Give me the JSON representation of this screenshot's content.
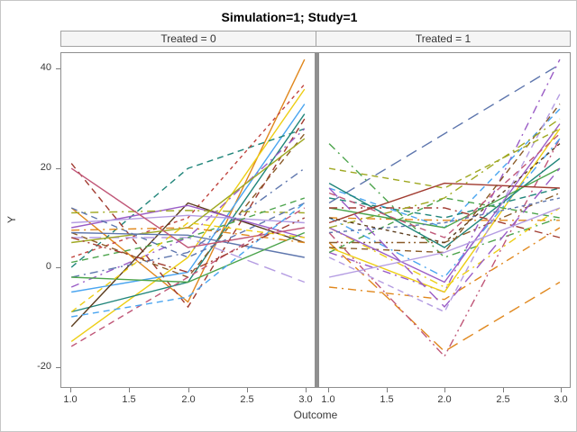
{
  "chart_data": {
    "type": "line",
    "title": "Simulation=1; Study=1",
    "xlabel": "Outcome",
    "ylabel": "Y",
    "x": [
      1,
      2,
      3
    ],
    "x_ticks": [
      "1.0",
      "1.5",
      "2.0",
      "2.5",
      "3.0"
    ],
    "y_ticks": [
      "40",
      "20",
      "0",
      "-20"
    ],
    "y_tick_values": [
      40,
      20,
      0,
      -20
    ],
    "ylim": [
      -24.2,
      43.3
    ],
    "x_inset_frac": 0.04,
    "grid": "off",
    "legend": "none",
    "dash_patterns": {
      "solid": "",
      "dash": "7 5",
      "shortdash": "4 4",
      "dashdot": "9 5 2 5",
      "longdash": "13 7",
      "dashdotdot": "9 4 2 4 2 4"
    },
    "panels": [
      {
        "label": "Treated = 0",
        "series": [
          {
            "color": "#E0871C",
            "dash": "solid",
            "y": [
              12,
              -7,
              42
            ]
          },
          {
            "color": "#EDCE15",
            "dash": "solid",
            "y": [
              -15,
              2,
              36
            ]
          },
          {
            "color": "#4AA5F0",
            "dash": "solid",
            "y": [
              -5,
              -1,
              33
            ]
          },
          {
            "color": "#20857A",
            "dash": "dash",
            "y": [
              0,
              20,
              28
            ]
          },
          {
            "color": "#20857A",
            "dash": "solid",
            "y": [
              -9,
              -3,
              31
            ]
          },
          {
            "color": "#A13B30",
            "dash": "dash",
            "y": [
              21,
              -8,
              30
            ]
          },
          {
            "color": "#C0443E",
            "dash": "shortdash",
            "y": [
              2,
              10,
              37
            ]
          },
          {
            "color": "#5C3D1E",
            "dash": "solid",
            "y": [
              -12,
              13,
              5
            ]
          },
          {
            "color": "#8A5B28",
            "dash": "dash",
            "y": [
              7,
              -2,
              27
            ]
          },
          {
            "color": "#9A5CC6",
            "dash": "solid",
            "y": [
              8,
              12.5,
              6
            ]
          },
          {
            "color": "#9A5CC6",
            "dash": "dashdot",
            "y": [
              -4,
              6,
              28
            ]
          },
          {
            "color": "#B49CE2",
            "dash": "longdash",
            "y": [
              6,
              6,
              -3
            ]
          },
          {
            "color": "#B49CE2",
            "dash": "solid",
            "y": [
              9,
              10.5,
              9
            ]
          },
          {
            "color": "#9FA821",
            "dash": "dashdot",
            "y": [
              11,
              11.5,
              11
            ]
          },
          {
            "color": "#9FA821",
            "dash": "solid",
            "y": [
              5,
              8,
              26
            ]
          },
          {
            "color": "#5F77AE",
            "dash": "solid",
            "y": [
              7,
              6.5,
              2
            ]
          },
          {
            "color": "#5F77AE",
            "dash": "dashdot",
            "y": [
              -2,
              3,
              20
            ]
          },
          {
            "color": "#5F77AE",
            "dash": "dash",
            "y": [
              12,
              2,
              13
            ]
          },
          {
            "color": "#4CA44C",
            "dash": "solid",
            "y": [
              -2,
              -3,
              7
            ]
          },
          {
            "color": "#4CA44C",
            "dash": "dash",
            "y": [
              1,
              6,
              14
            ]
          },
          {
            "color": "#C05778",
            "dash": "dash",
            "y": [
              -16,
              -2,
              12
            ]
          },
          {
            "color": "#C05778",
            "dash": "solid",
            "y": [
              20,
              4,
              8
            ]
          },
          {
            "color": "#E0871C",
            "dash": "dashdot",
            "y": [
              7.5,
              8,
              5
            ]
          },
          {
            "color": "#4AA5F0",
            "dash": "dash",
            "y": [
              -10,
              -6,
              13
            ]
          },
          {
            "color": "#EDCE15",
            "dash": "dash",
            "y": [
              -9,
              9,
              6
            ]
          },
          {
            "color": "#A13B30",
            "dash": "dashdotdot",
            "y": [
              6,
              -1,
              10
            ]
          }
        ]
      },
      {
        "label": "Treated = 1",
        "series": [
          {
            "color": "#5F77AE",
            "dash": "longdash",
            "y": [
              13,
              27,
              41
            ]
          },
          {
            "color": "#9A5CC6",
            "dash": "dashdot",
            "y": [
              3,
              -5,
              42
            ]
          },
          {
            "color": "#4CA44C",
            "dash": "dashdot",
            "y": [
              25,
              2,
              10
            ]
          },
          {
            "color": "#E0871C",
            "dash": "longdash",
            "y": [
              5,
              -17,
              -3
            ]
          },
          {
            "color": "#C05778",
            "dash": "dashdotdot",
            "y": [
              7,
              -18,
              26
            ]
          },
          {
            "color": "#E0871C",
            "dash": "dashdot",
            "y": [
              10,
              9.5,
              9.5
            ]
          },
          {
            "color": "#E0871C",
            "dash": "dashdot",
            "y": [
              -4,
              -6.5,
              8
            ]
          },
          {
            "color": "#EDCE15",
            "dash": "solid",
            "y": [
              4,
              -5,
              28
            ]
          },
          {
            "color": "#EDCE15",
            "dash": "dashdot",
            "y": [
              8,
              -4,
              12
            ]
          },
          {
            "color": "#4AA5F0",
            "dash": "dashdot",
            "y": [
              10,
              -2,
              26
            ]
          },
          {
            "color": "#4AA5F0",
            "dash": "dash",
            "y": [
              16,
              8,
              32
            ]
          },
          {
            "color": "#20857A",
            "dash": "solid",
            "y": [
              17,
              4,
              22
            ]
          },
          {
            "color": "#20857A",
            "dash": "dash",
            "y": [
              14,
              10,
              16
            ]
          },
          {
            "color": "#4CA44C",
            "dash": "solid",
            "y": [
              12,
              8,
              20
            ]
          },
          {
            "color": "#4CA44C",
            "dash": "dash",
            "y": [
              3,
              14,
              10
            ]
          },
          {
            "color": "#A13B30",
            "dash": "solid",
            "y": [
              9,
              17,
              16
            ]
          },
          {
            "color": "#A13B30",
            "dash": "dashdot",
            "y": [
              12,
              12,
              6
            ]
          },
          {
            "color": "#8A5B28",
            "dash": "dash",
            "y": [
              4,
              3,
              33
            ]
          },
          {
            "color": "#8A5B28",
            "dash": "dashdotdot",
            "y": [
              5,
              5,
              15
            ]
          },
          {
            "color": "#9A5CC6",
            "dash": "solid",
            "y": [
              8,
              -3,
              29
            ]
          },
          {
            "color": "#9A5CC6",
            "dash": "longdash",
            "y": [
              16,
              -8,
              20
            ]
          },
          {
            "color": "#B49CE2",
            "dash": "dash",
            "y": [
              2,
              -9,
              35
            ]
          },
          {
            "color": "#B49CE2",
            "dash": "solid",
            "y": [
              -2,
              3,
              12
            ]
          },
          {
            "color": "#9FA821",
            "dash": "dashdot",
            "y": [
              8,
              14,
              30
            ]
          },
          {
            "color": "#9FA821",
            "dash": "dash",
            "y": [
              20,
              16,
              28
            ]
          },
          {
            "color": "#C05778",
            "dash": "dash",
            "y": [
              15,
              6,
              27
            ]
          },
          {
            "color": "#5F77AE",
            "dash": "shortdash",
            "y": [
              7,
              9,
              14
            ]
          },
          {
            "color": "#5C3D1E",
            "dash": "shortdash",
            "y": [
              10,
              5,
              25
            ]
          }
        ]
      }
    ]
  }
}
